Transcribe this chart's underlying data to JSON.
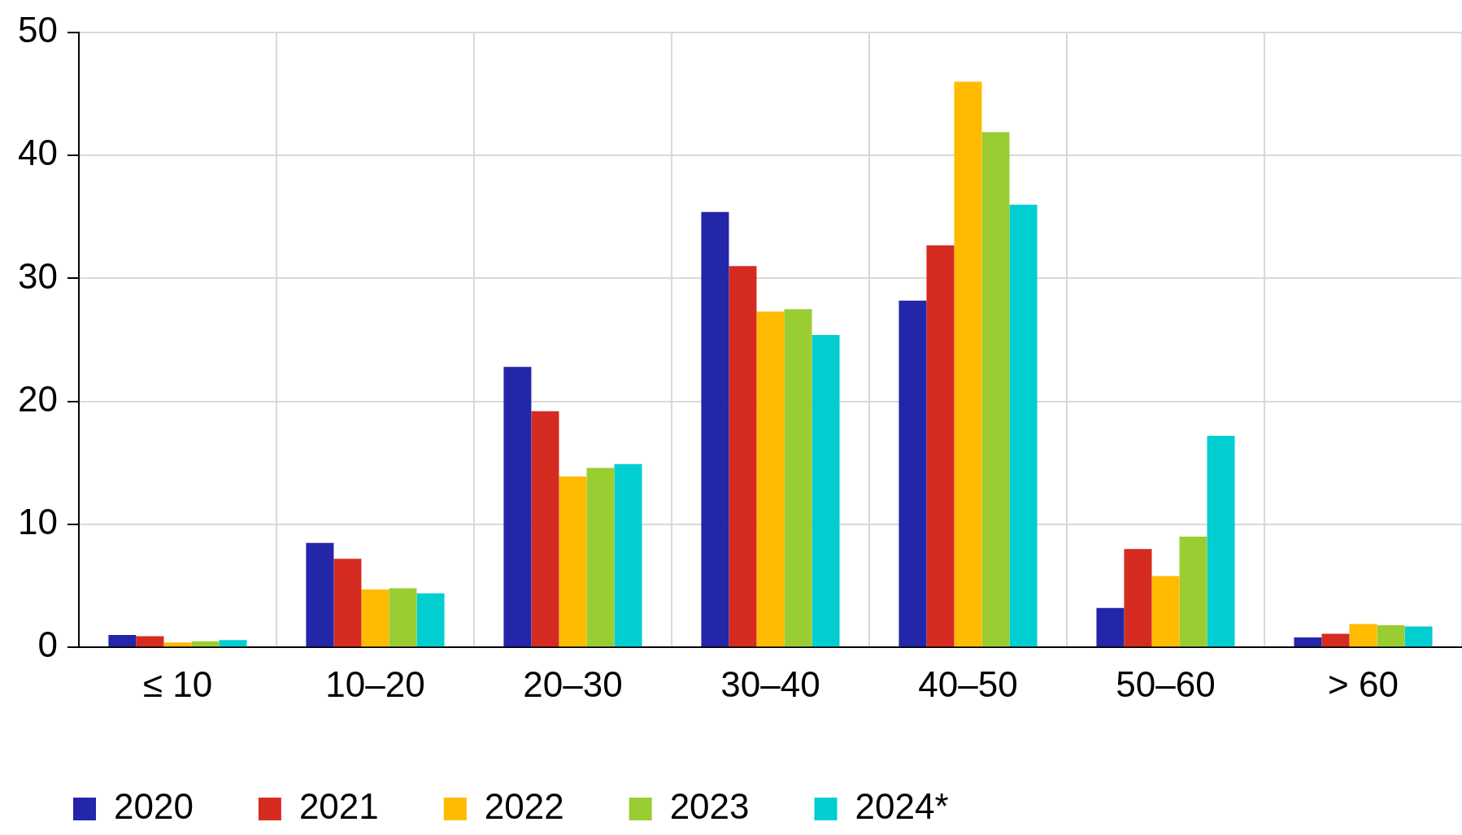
{
  "chart_data": {
    "type": "bar",
    "categories": [
      "≤ 10",
      "10–20",
      "20–30",
      "30–40",
      "40–50",
      "50–60",
      "> 60"
    ],
    "series": [
      {
        "name": "2020",
        "color": "#2326a8",
        "values": [
          1.0,
          8.5,
          22.8,
          35.4,
          28.2,
          3.2,
          0.8
        ]
      },
      {
        "name": "2021",
        "color": "#d62b20",
        "values": [
          0.9,
          7.2,
          19.2,
          31.0,
          32.7,
          8.0,
          1.1
        ]
      },
      {
        "name": "2022",
        "color": "#ffbb00",
        "values": [
          0.4,
          4.7,
          13.9,
          27.3,
          46.0,
          5.8,
          1.9
        ]
      },
      {
        "name": "2023",
        "color": "#9acd32",
        "values": [
          0.5,
          4.8,
          14.6,
          27.5,
          41.9,
          9.0,
          1.8
        ]
      },
      {
        "name": "2024*",
        "color": "#00ced1",
        "values": [
          0.6,
          4.4,
          14.9,
          25.4,
          36.0,
          17.2,
          1.7
        ]
      }
    ],
    "ylim": [
      0,
      50
    ],
    "yticks": [
      0,
      10,
      20,
      30,
      40,
      50
    ],
    "grid": true,
    "legend": "bottom"
  }
}
